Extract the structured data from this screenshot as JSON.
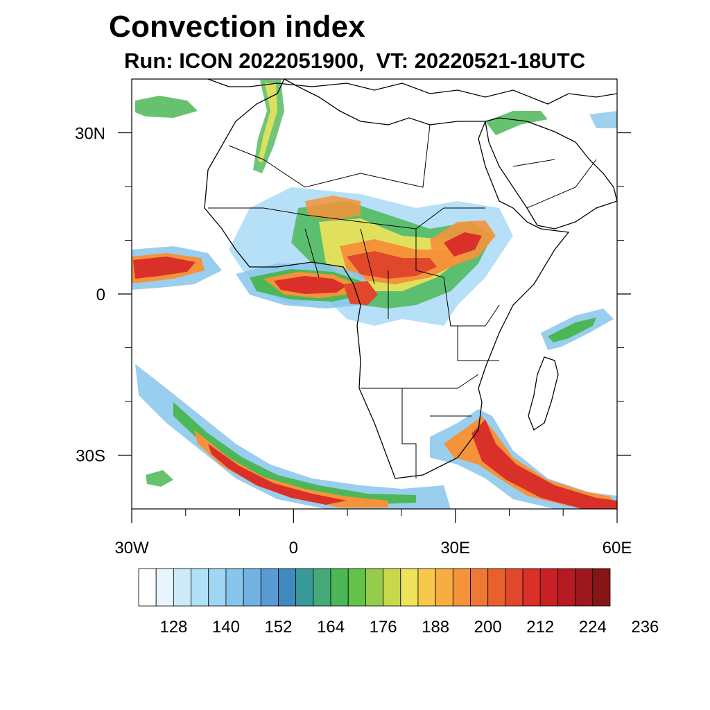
{
  "title": "Convection index",
  "subtitle": "Run: ICON 2022051900,  VT: 20220521-18UTC",
  "map": {
    "projection": "cylindrical-equidistant",
    "lon_range": [
      -30,
      60
    ],
    "lat_range": [
      -40,
      40
    ],
    "x_ticks": [
      {
        "lon": -30,
        "label": "30W"
      },
      {
        "lon": 0,
        "label": "0"
      },
      {
        "lon": 30,
        "label": "30E"
      },
      {
        "lon": 60,
        "label": "60E"
      }
    ],
    "y_ticks": [
      {
        "lat": 30,
        "label": "30N"
      },
      {
        "lat": 0,
        "label": "0"
      },
      {
        "lat": -30,
        "label": "30S"
      }
    ],
    "minor_ticks_lon": [
      -20,
      -10,
      10,
      20,
      40,
      50
    ],
    "minor_ticks_lat": [
      20,
      10,
      -10,
      -20
    ]
  },
  "colorbar": {
    "colors": [
      "#ffffff",
      "#e8f5fc",
      "#cdeaf8",
      "#b2e0f6",
      "#9ed6f4",
      "#88c5ec",
      "#72b2e3",
      "#5a9bd4",
      "#3f8bbf",
      "#3a9a9a",
      "#45a878",
      "#4cb757",
      "#62c24a",
      "#96cc4c",
      "#c7d84a",
      "#eee35a",
      "#f7c84c",
      "#f6ae42",
      "#f4933a",
      "#ef7834",
      "#e8602e",
      "#e0472b",
      "#d93029",
      "#c92026",
      "#b51a22",
      "#9d181e",
      "#881516"
    ],
    "labels": [
      "128",
      "140",
      "152",
      "164",
      "176",
      "188",
      "200",
      "212",
      "224",
      "236"
    ]
  }
}
